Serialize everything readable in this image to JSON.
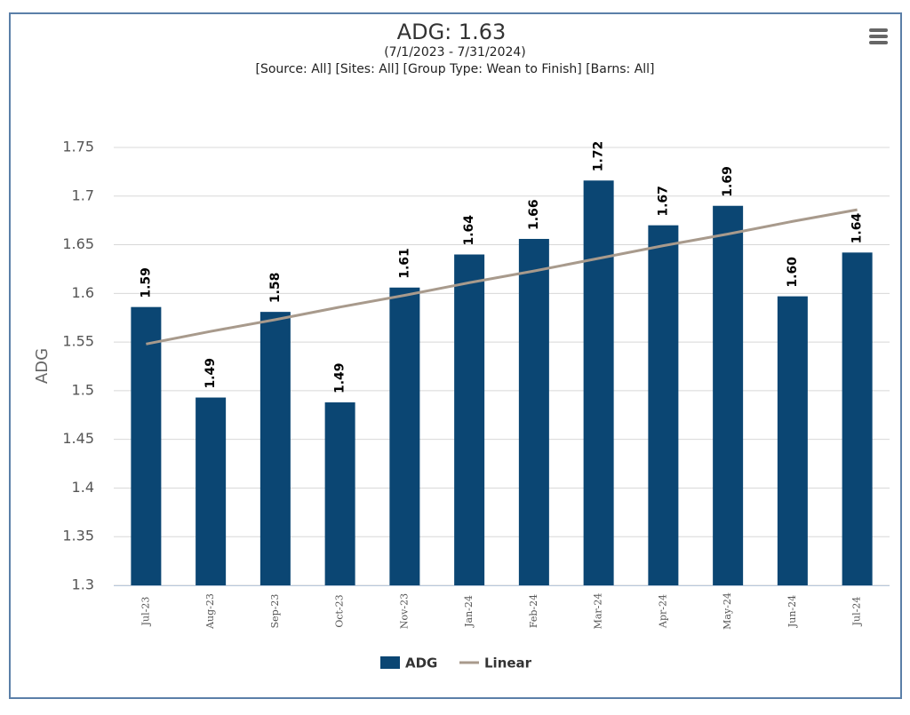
{
  "chart_data": {
    "type": "bar",
    "title": "ADG: 1.63",
    "subtitle": "(7/1/2023 - 7/31/2024)",
    "filters": "[Source: All] [Sites: All] [Group Type: Wean to Finish] [Barns: All]",
    "y_label": "ADG",
    "categories": [
      "Jul-23",
      "Aug-23",
      "Sep-23",
      "Oct-23",
      "Nov-23",
      "Jan-24",
      "Feb-24",
      "Mar-24",
      "Apr-24",
      "May-24",
      "Jun-24",
      "Jul-24"
    ],
    "series": [
      {
        "name": "ADG",
        "color": "#0b4673",
        "type": "bar",
        "values": [
          1.586,
          1.493,
          1.581,
          1.488,
          1.606,
          1.64,
          1.656,
          1.716,
          1.67,
          1.69,
          1.597,
          1.642
        ],
        "value_labels": [
          "1.59",
          "1.49",
          "1.58",
          "1.49",
          "1.61",
          "1.64",
          "1.66",
          "1.72",
          "1.67",
          "1.69",
          "1.60",
          "1.64"
        ]
      },
      {
        "name": "Linear",
        "color": "#a89a8c",
        "type": "line",
        "values": [
          1.548,
          1.561,
          1.573,
          1.586,
          1.598,
          1.611,
          1.623,
          1.636,
          1.649,
          1.661,
          1.674,
          1.686
        ]
      }
    ],
    "ylim": [
      1.3,
      1.75
    ],
    "yticks": [
      1.3,
      1.35,
      1.4,
      1.45,
      1.5,
      1.55,
      1.6,
      1.65,
      1.7,
      1.75
    ],
    "grid": true,
    "legend": "bottom"
  }
}
